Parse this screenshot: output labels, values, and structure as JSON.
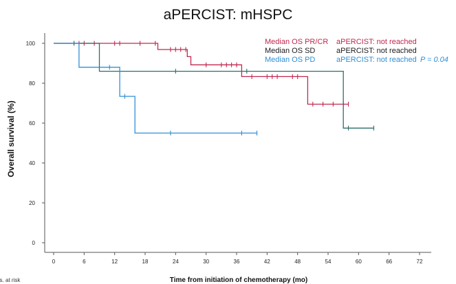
{
  "chart_data": {
    "type": "line",
    "title": "aPERCIST: mHSPC",
    "xlabel": "Time from initiation of chemotherapy (mo)",
    "ylabel": "Overall survival (%)",
    "xlim": [
      0,
      72
    ],
    "ylim": [
      0,
      100
    ],
    "xticks": [
      0,
      6,
      12,
      18,
      24,
      30,
      36,
      42,
      48,
      54,
      60,
      66,
      72
    ],
    "yticks": [
      0,
      20,
      40,
      60,
      80,
      100
    ],
    "legend_position": "top-right",
    "legend": [
      {
        "label": "Median OS PR/CR",
        "value": "aPERCIST: not reached",
        "color": "#c0284f"
      },
      {
        "label": "Median OS SD",
        "value": "aPERCIST: not reached",
        "color": "#1a1a1a"
      },
      {
        "label": "Median OS PD",
        "value": "aPERCIST: not reached",
        "color": "#2f8fd6"
      }
    ],
    "p_value": "P = 0.04",
    "footnote": "Pts. at risk",
    "series": [
      {
        "color": "#c0284f",
        "steps": [
          [
            0,
            100
          ],
          [
            20.5,
            100
          ],
          [
            20.5,
            96.9
          ],
          [
            26.3,
            96.9
          ],
          [
            26.3,
            93.3
          ],
          [
            27,
            93.3
          ],
          [
            27,
            89.2
          ],
          [
            37,
            89.2
          ],
          [
            37,
            83.3
          ],
          [
            50,
            83.3
          ],
          [
            50,
            69.5
          ],
          [
            58,
            69.5
          ]
        ],
        "censored": [
          [
            4,
            100
          ],
          [
            5,
            100
          ],
          [
            6,
            100
          ],
          [
            8,
            100
          ],
          [
            12,
            100
          ],
          [
            13,
            100
          ],
          [
            17,
            100
          ],
          [
            20,
            100
          ],
          [
            23,
            96.9
          ],
          [
            24,
            96.9
          ],
          [
            25,
            96.9
          ],
          [
            26,
            96.9
          ],
          [
            30,
            89.2
          ],
          [
            33,
            89.2
          ],
          [
            34,
            89.2
          ],
          [
            35,
            89.2
          ],
          [
            36,
            89.2
          ],
          [
            39,
            83.3
          ],
          [
            42,
            83.3
          ],
          [
            43,
            83.3
          ],
          [
            44,
            83.3
          ],
          [
            47,
            83.3
          ],
          [
            48,
            83.3
          ],
          [
            51,
            69.5
          ],
          [
            53,
            69.5
          ],
          [
            55,
            69.5
          ],
          [
            57,
            69.5
          ],
          [
            58,
            69.5
          ]
        ]
      },
      {
        "color": "#2a6e6a",
        "steps": [
          [
            0,
            100
          ],
          [
            9,
            100
          ],
          [
            9,
            86
          ],
          [
            57,
            86
          ],
          [
            57,
            57.5
          ],
          [
            63,
            57.5
          ]
        ],
        "censored": [
          [
            4,
            100
          ],
          [
            24,
            86
          ],
          [
            38,
            86
          ],
          [
            58,
            57.5
          ],
          [
            63,
            57.5
          ]
        ]
      },
      {
        "color": "#2f8fd6",
        "steps": [
          [
            0,
            100
          ],
          [
            5,
            100
          ],
          [
            5,
            88
          ],
          [
            13,
            88
          ],
          [
            13,
            73.4
          ],
          [
            16,
            73.4
          ],
          [
            16,
            55
          ],
          [
            40,
            55
          ]
        ],
        "censored": [
          [
            11,
            88
          ],
          [
            14,
            73.4
          ],
          [
            23,
            55
          ],
          [
            37,
            55
          ],
          [
            40,
            55
          ]
        ]
      }
    ]
  }
}
